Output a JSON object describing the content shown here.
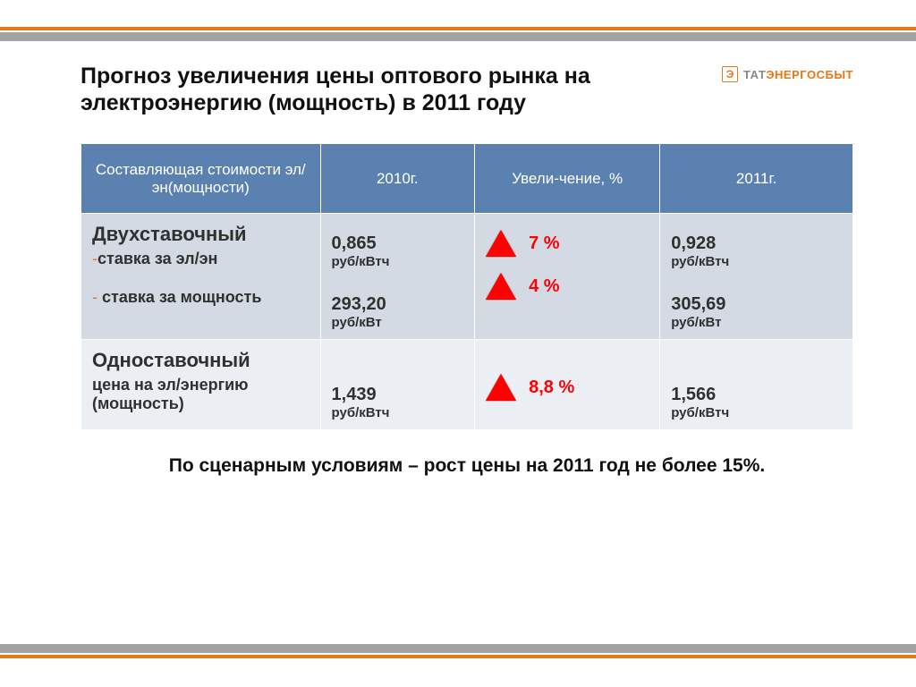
{
  "colors": {
    "accent_orange": "#e67817",
    "bar_gray": "#a3a3a3",
    "header_blue": "#5a81b0",
    "row_alt1": "#d3dae4",
    "row_alt2": "#ebeef3",
    "triangle_red": "#ff0000",
    "text_dark": "#303030"
  },
  "logo": {
    "brand1": "ТАТ",
    "brand2": "ЭНЕРГОСБЫТ"
  },
  "title": "Прогноз увеличения цены оптового рынка на электроэнергию (мощность) в 2011 году",
  "table": {
    "columns": [
      "Составляющая стоимости эл/эн(мощности)",
      "2010г.",
      "Увели-чение, %",
      "2011г."
    ],
    "col_widths_pct": [
      31,
      20,
      24,
      25
    ],
    "rows": [
      {
        "label_main": "Двухставочный",
        "label_sub1_prefix": "-",
        "label_sub1": "ставка за эл/эн",
        "label_sub2_prefix": "-",
        "label_sub2": "ставка за мощность",
        "y2010": [
          {
            "value": "0,865",
            "unit": "руб/кВтч"
          },
          {
            "value": "293,20",
            "unit": "руб/кВт"
          }
        ],
        "change": [
          {
            "pct": "7 %"
          },
          {
            "pct": "4 %"
          }
        ],
        "y2011": [
          {
            "value": "0,928",
            "unit": "руб/кВтч"
          },
          {
            "value": "305,69",
            "unit": "руб/кВт"
          }
        ]
      },
      {
        "label_main": "Одноставочный",
        "label_sub1": "цена на эл/энергию (мощность)",
        "y2010": [
          {
            "value": "1,439",
            "unit": "руб/кВтч"
          }
        ],
        "change": [
          {
            "pct": "8,8 %"
          }
        ],
        "y2011": [
          {
            "value": "1,566",
            "unit": "руб/кВтч"
          }
        ]
      }
    ]
  },
  "footnote": "По сценарным условиям – рост цены на 2011 год не более 15%."
}
